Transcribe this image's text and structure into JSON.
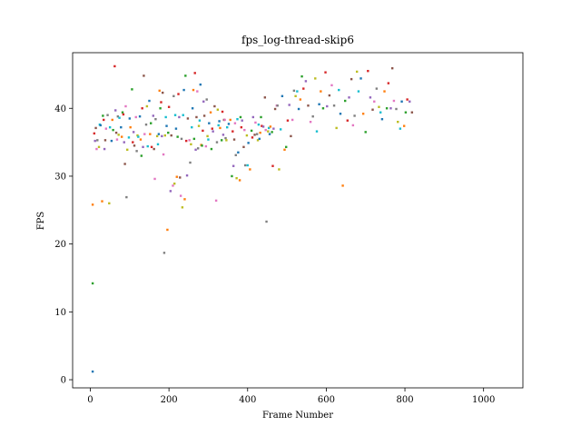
{
  "chart_data": {
    "type": "scatter",
    "title": "fps_log-thread-skip6",
    "xlabel": "Frame Number",
    "ylabel": "FPS",
    "xlim": [
      -45,
      1100
    ],
    "ylim": [
      -1.2,
      48.2
    ],
    "x_ticks": [
      "0",
      "200",
      "400",
      "600",
      "800",
      "1000"
    ],
    "x_tick_values": [
      0,
      200,
      400,
      600,
      800,
      1000
    ],
    "y_ticks": [
      "0",
      "10",
      "20",
      "30",
      "40"
    ],
    "y_tick_values": [
      0,
      10,
      20,
      30,
      40
    ],
    "grid": false,
    "legend": "none",
    "palette": [
      "#1f77b4",
      "#ff7f0e",
      "#2ca02c",
      "#d62728",
      "#9467bd",
      "#8c564b",
      "#e377c2",
      "#7f7f7f",
      "#bcbd22",
      "#17becf"
    ],
    "points": [
      [
        6,
        1.2
      ],
      [
        6,
        25.8
      ],
      [
        6,
        14.2
      ],
      [
        10,
        36.3
      ],
      [
        12,
        35.2
      ],
      [
        14,
        37.1
      ],
      [
        16,
        34.0
      ],
      [
        18,
        35.3
      ],
      [
        22,
        34.3
      ],
      [
        24,
        37.6
      ],
      [
        26,
        37.5
      ],
      [
        30,
        26.3
      ],
      [
        32,
        38.9
      ],
      [
        34,
        38.3
      ],
      [
        36,
        34.0
      ],
      [
        38,
        35.3
      ],
      [
        40,
        37.0
      ],
      [
        44,
        39.0
      ],
      [
        48,
        26.0
      ],
      [
        50,
        37.2
      ],
      [
        54,
        35.2
      ],
      [
        56,
        38.3
      ],
      [
        58,
        36.8
      ],
      [
        62,
        46.2
      ],
      [
        64,
        39.7
      ],
      [
        66,
        36.4
      ],
      [
        68,
        35.4
      ],
      [
        70,
        38.8
      ],
      [
        72,
        36.1
      ],
      [
        74,
        38.6
      ],
      [
        78,
        37.2
      ],
      [
        80,
        35.8
      ],
      [
        82,
        39.4
      ],
      [
        84,
        39.1
      ],
      [
        86,
        35.0
      ],
      [
        88,
        31.8
      ],
      [
        90,
        40.3
      ],
      [
        92,
        26.9
      ],
      [
        94,
        33.9
      ],
      [
        98,
        35.7
      ],
      [
        100,
        38.5
      ],
      [
        102,
        37.2
      ],
      [
        106,
        42.8
      ],
      [
        108,
        35.0
      ],
      [
        110,
        36.5
      ],
      [
        112,
        34.5
      ],
      [
        116,
        38.7
      ],
      [
        118,
        33.7
      ],
      [
        120,
        36.0
      ],
      [
        122,
        35.8
      ],
      [
        126,
        38.8
      ],
      [
        128,
        35.4
      ],
      [
        130,
        33.0
      ],
      [
        132,
        40.0
      ],
      [
        134,
        34.3
      ],
      [
        136,
        44.8
      ],
      [
        138,
        36.2
      ],
      [
        142,
        37.6
      ],
      [
        144,
        40.3
      ],
      [
        146,
        34.4
      ],
      [
        150,
        41.1
      ],
      [
        152,
        36.2
      ],
      [
        154,
        37.8
      ],
      [
        156,
        34.3
      ],
      [
        160,
        38.9
      ],
      [
        162,
        34.0
      ],
      [
        164,
        29.6
      ],
      [
        166,
        38.4
      ],
      [
        170,
        35.9
      ],
      [
        172,
        34.7
      ],
      [
        174,
        36.2
      ],
      [
        176,
        42.6
      ],
      [
        178,
        40.0
      ],
      [
        180,
        40.9
      ],
      [
        182,
        35.9
      ],
      [
        184,
        42.3
      ],
      [
        186,
        33.2
      ],
      [
        188,
        18.7
      ],
      [
        190,
        36.0
      ],
      [
        192,
        38.7
      ],
      [
        194,
        37.4
      ],
      [
        196,
        22.1
      ],
      [
        198,
        36.4
      ],
      [
        200,
        40.2
      ],
      [
        204,
        27.8
      ],
      [
        206,
        36.0
      ],
      [
        210,
        28.6
      ],
      [
        212,
        41.8
      ],
      [
        214,
        28.9
      ],
      [
        216,
        39.0
      ],
      [
        218,
        37.0
      ],
      [
        220,
        29.9
      ],
      [
        222,
        35.8
      ],
      [
        224,
        42.1
      ],
      [
        226,
        38.7
      ],
      [
        228,
        29.8
      ],
      [
        230,
        27.1
      ],
      [
        232,
        35.5
      ],
      [
        234,
        25.4
      ],
      [
        236,
        39.0
      ],
      [
        238,
        42.7
      ],
      [
        240,
        26.6
      ],
      [
        242,
        44.8
      ],
      [
        244,
        35.2
      ],
      [
        246,
        30.1
      ],
      [
        248,
        38.5
      ],
      [
        252,
        35.3
      ],
      [
        254,
        32.0
      ],
      [
        256,
        34.7
      ],
      [
        258,
        37.2
      ],
      [
        260,
        40.0
      ],
      [
        262,
        42.7
      ],
      [
        264,
        35.5
      ],
      [
        266,
        45.2
      ],
      [
        268,
        33.9
      ],
      [
        270,
        38.7
      ],
      [
        272,
        42.5
      ],
      [
        274,
        34.1
      ],
      [
        276,
        37.4
      ],
      [
        278,
        38.2
      ],
      [
        280,
        43.5
      ],
      [
        282,
        34.6
      ],
      [
        284,
        34.5
      ],
      [
        286,
        36.7
      ],
      [
        288,
        41.0
      ],
      [
        290,
        38.9
      ],
      [
        294,
        34.4
      ],
      [
        296,
        41.3
      ],
      [
        298,
        35.9
      ],
      [
        300,
        35.4
      ],
      [
        302,
        37.8
      ],
      [
        306,
        39.4
      ],
      [
        308,
        34.0
      ],
      [
        310,
        37.0
      ],
      [
        312,
        36.6
      ],
      [
        316,
        40.3
      ],
      [
        320,
        26.4
      ],
      [
        322,
        35.0
      ],
      [
        324,
        39.8
      ],
      [
        326,
        37.5
      ],
      [
        328,
        38.1
      ],
      [
        330,
        37.1
      ],
      [
        334,
        35.3
      ],
      [
        336,
        39.5
      ],
      [
        338,
        36.1
      ],
      [
        340,
        38.3
      ],
      [
        342,
        38.3
      ],
      [
        344,
        35.6
      ],
      [
        346,
        35.3
      ],
      [
        348,
        37.2
      ],
      [
        352,
        37.7
      ],
      [
        356,
        38.3
      ],
      [
        360,
        30.0
      ],
      [
        362,
        36.6
      ],
      [
        364,
        31.5
      ],
      [
        366,
        35.4
      ],
      [
        368,
        37.8
      ],
      [
        370,
        33.1
      ],
      [
        372,
        29.7
      ],
      [
        374,
        38.4
      ],
      [
        376,
        33.5
      ],
      [
        380,
        29.4
      ],
      [
        382,
        38.7
      ],
      [
        384,
        37.2
      ],
      [
        386,
        38.2
      ],
      [
        390,
        34.3
      ],
      [
        392,
        36.8
      ],
      [
        394,
        31.6
      ],
      [
        398,
        36.0
      ],
      [
        400,
        31.6
      ],
      [
        402,
        34.9
      ],
      [
        406,
        31.0
      ],
      [
        410,
        36.7
      ],
      [
        412,
        35.7
      ],
      [
        414,
        38.7
      ],
      [
        418,
        36.1
      ],
      [
        420,
        37.9
      ],
      [
        424,
        36.2
      ],
      [
        426,
        35.3
      ],
      [
        428,
        37.6
      ],
      [
        430,
        35.5
      ],
      [
        432,
        36.4
      ],
      [
        434,
        38.7
      ],
      [
        436,
        37.4
      ],
      [
        440,
        37.3
      ],
      [
        444,
        41.6
      ],
      [
        446,
        36.8
      ],
      [
        448,
        23.3
      ],
      [
        452,
        36.6
      ],
      [
        454,
        37.1
      ],
      [
        456,
        36.2
      ],
      [
        458,
        37.3
      ],
      [
        462,
        36.5
      ],
      [
        464,
        31.5
      ],
      [
        466,
        37.0
      ],
      [
        470,
        39.9
      ],
      [
        474,
        40.4
      ],
      [
        476,
        40.4
      ],
      [
        480,
        31.0
      ],
      [
        484,
        36.9
      ],
      [
        488,
        41.8
      ],
      [
        494,
        33.9
      ],
      [
        498,
        34.3
      ],
      [
        502,
        38.2
      ],
      [
        506,
        40.5
      ],
      [
        510,
        35.9
      ],
      [
        514,
        38.3
      ],
      [
        518,
        42.6
      ],
      [
        522,
        41.8
      ],
      [
        526,
        42.5
      ],
      [
        530,
        39.9
      ],
      [
        534,
        41.3
      ],
      [
        538,
        44.7
      ],
      [
        542,
        42.9
      ],
      [
        548,
        44.0
      ],
      [
        554,
        40.4
      ],
      [
        560,
        38.0
      ],
      [
        566,
        38.8
      ],
      [
        572,
        44.4
      ],
      [
        576,
        36.6
      ],
      [
        582,
        40.6
      ],
      [
        586,
        42.5
      ],
      [
        592,
        40.0
      ],
      [
        598,
        45.3
      ],
      [
        602,
        40.3
      ],
      [
        608,
        41.9
      ],
      [
        614,
        43.4
      ],
      [
        620,
        40.4
      ],
      [
        626,
        37.1
      ],
      [
        632,
        42.7
      ],
      [
        636,
        39.2
      ],
      [
        642,
        28.6
      ],
      [
        648,
        41.1
      ],
      [
        654,
        38.2
      ],
      [
        658,
        41.6
      ],
      [
        664,
        44.3
      ],
      [
        668,
        37.5
      ],
      [
        672,
        38.9
      ],
      [
        678,
        45.4
      ],
      [
        682,
        42.5
      ],
      [
        688,
        44.4
      ],
      [
        694,
        39.2
      ],
      [
        700,
        36.5
      ],
      [
        706,
        45.5
      ],
      [
        712,
        41.6
      ],
      [
        718,
        39.8
      ],
      [
        722,
        41.0
      ],
      [
        728,
        42.9
      ],
      [
        734,
        40.2
      ],
      [
        738,
        39.4
      ],
      [
        742,
        38.4
      ],
      [
        748,
        42.5
      ],
      [
        754,
        40.0
      ],
      [
        758,
        43.7
      ],
      [
        764,
        40.0
      ],
      [
        768,
        45.9
      ],
      [
        772,
        41.1
      ],
      [
        778,
        39.9
      ],
      [
        782,
        38.0
      ],
      [
        788,
        37.0
      ],
      [
        792,
        41.0
      ],
      [
        798,
        37.4
      ],
      [
        802,
        39.4
      ],
      [
        806,
        41.3
      ],
      [
        812,
        41.0
      ],
      [
        818,
        39.4
      ]
    ]
  }
}
